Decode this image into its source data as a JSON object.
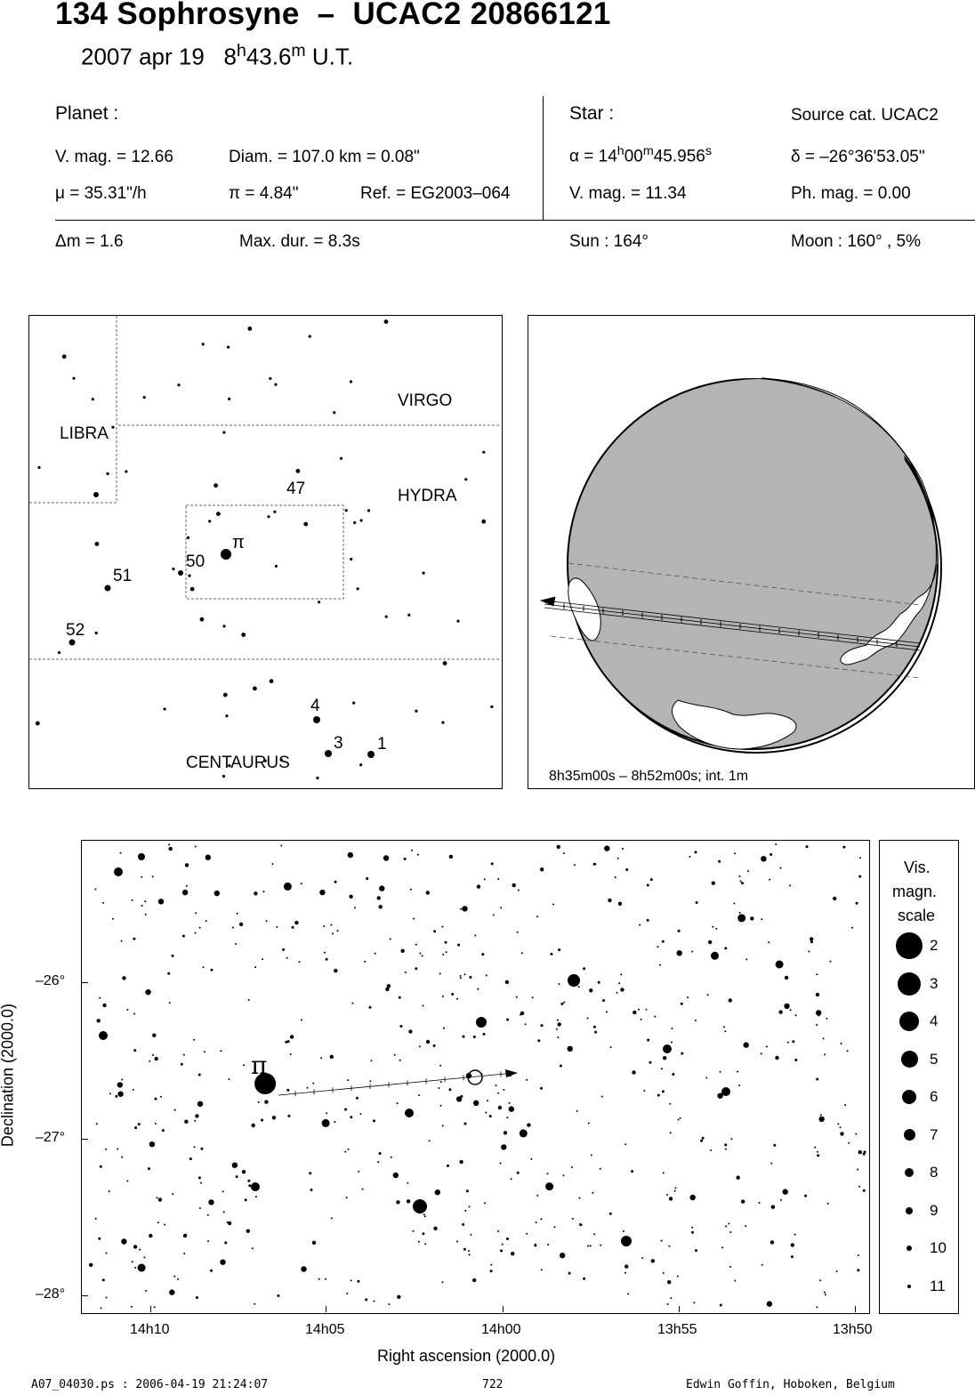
{
  "header": {
    "object": "134 Sophrosyne",
    "separator": "–",
    "star_id": "UCAC2 20866121",
    "date": "2007 apr 19",
    "time_h": "8",
    "time_min": "43.6",
    "time_suffix": "U.T."
  },
  "planet": {
    "heading": "Planet :",
    "vmag": "V. mag. = 12.66",
    "diam": "Diam. = 107.0 km = 0.08\"",
    "mu_symbol": "μ",
    "mu_value": "=  35.31\"/h",
    "pi_symbol": "π",
    "pi_value": "=  4.84\"",
    "ref": "Ref. = EG2003–064"
  },
  "star": {
    "heading": "Star :",
    "source": "Source cat.  UCAC2",
    "alpha_symbol": "α",
    "alpha_h": "14",
    "alpha_m": "00",
    "alpha_s": "45.956",
    "delta": "δ = –26°36'53.05\"",
    "vmag": "V. mag. = 11.34",
    "phmag": "Ph. mag. =  0.00"
  },
  "event": {
    "dm_symbol": "Δ",
    "dm_value": "m = 1.6",
    "maxdur": "Max. dur. = 8.3s",
    "sun": "Sun : 164°",
    "moon": "Moon : 160° ,  5%"
  },
  "finder": {
    "constellations": [
      "VIRGO",
      "LIBRA",
      "HYDRA",
      "CENTAURUS"
    ],
    "star_labels": [
      "47",
      "50",
      "51",
      "52",
      "4",
      "3",
      "1"
    ],
    "pi_label": "π"
  },
  "globe": {
    "caption": "8h35m00s –  8h52m00s; int.  1m"
  },
  "chart": {
    "pi_label": "π",
    "xlabel": "Right ascension (2000.0)",
    "ylabel": "Declination (2000.0)",
    "x_ticks": [
      "14h10",
      "14h05",
      "14h00",
      "13h55",
      "13h50"
    ],
    "y_ticks": [
      "–26°",
      "–27°",
      "–28°"
    ],
    "scale_title": [
      "Vis.",
      "magn.",
      "scale"
    ],
    "scale_mags": [
      "2",
      "3",
      "4",
      "5",
      "6",
      "7",
      "8",
      "9",
      "10",
      "11"
    ]
  },
  "chart_data": {
    "type": "scatter",
    "xlabel": "Right ascension (2000.0)",
    "ylabel": "Declination (2000.0)",
    "x_ticks_hours": [
      14.1667,
      14.0833,
      14.0,
      13.9167,
      13.8333
    ],
    "y_ticks_deg": [
      -26,
      -27,
      -28
    ],
    "xlim_hours": [
      14.19,
      13.825
    ],
    "ylim_deg": [
      -25.14,
      -28.13
    ],
    "labeled_stars": [
      {
        "ra_h": 14.1049,
        "dec_deg": -26.68,
        "mag": 3,
        "label": "π"
      },
      {
        "ra_h": 14.0125,
        "dec_deg": -26.615,
        "label": "occulted star"
      }
    ]
  },
  "footer": {
    "file": "A07_04030.ps : 2006-04-19 21:24:07",
    "page": "722",
    "author": "Edwin Goffin, Hoboken, Belgium"
  }
}
